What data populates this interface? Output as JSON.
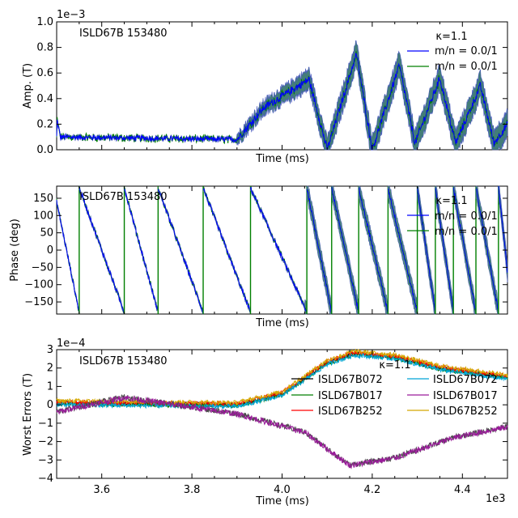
{
  "colors": {
    "blue": "#0000ff",
    "green": "#007f00",
    "band": "#2f6f6a",
    "red": "#ff0000",
    "cyan": "#00a5d6",
    "magenta": "#9a1a9a",
    "gold": "#d4a800"
  },
  "chart_data": [
    {
      "type": "line",
      "title": "ISLD67B 153480",
      "xlabel": "Time (ms)",
      "ylabel": "Amp. (T)",
      "offset_label": "1e−3",
      "xlim": [
        3500,
        4500
      ],
      "ylim": [
        0,
        1.0
      ],
      "yticks": [
        "0.0",
        "0.2",
        "0.4",
        "0.6",
        "0.8",
        "1.0"
      ],
      "legend_title": "κ=1.1",
      "legend_placement": "top-right",
      "series": [
        {
          "name": "m/n = 0.0/1",
          "color": "#0000ff"
        },
        {
          "name": "m/n = 0.0/1",
          "color": "#007f00"
        }
      ],
      "description_of_signal": {
        "baseline_before_3900": 0.08,
        "peaks": [
          [
            3960,
            0.33
          ],
          [
            4060,
            0.55
          ],
          [
            4165,
            0.75
          ],
          [
            4260,
            0.66
          ],
          [
            4350,
            0.56
          ],
          [
            4440,
            0.5
          ]
        ],
        "minima": [
          [
            4100,
            0.0
          ],
          [
            4200,
            0.0
          ],
          [
            4295,
            0.05
          ],
          [
            4385,
            0.05
          ],
          [
            4470,
            0.05
          ]
        ]
      }
    },
    {
      "type": "line",
      "title": "ISLD67B 153480",
      "xlabel": "Time (ms)",
      "ylabel": "Phase (deg)",
      "xlim": [
        3500,
        4500
      ],
      "ylim": [
        -185,
        185
      ],
      "yticks": [
        "150",
        "100",
        "50",
        "0",
        "−50",
        "−100",
        "−150"
      ],
      "legend_title": "κ=1.1",
      "legend_placement": "top-right",
      "series": [
        {
          "name": "m/n = 0.0/1",
          "color": "#0000ff"
        },
        {
          "name": "m/n = 0.0/1",
          "color": "#007f00"
        }
      ],
      "phase_wraps_at_ms": [
        3550,
        3650,
        3725,
        3825,
        3930,
        4055,
        4110,
        4170,
        4235,
        4300,
        4340,
        4380,
        4430,
        4480
      ]
    },
    {
      "type": "line",
      "title": "ISLD67B 153480",
      "xlabel": "Time (ms)",
      "ylabel": "Worst Errors (T)",
      "offset_label": "1e−4",
      "x_offset_label": "1e3",
      "xlim": [
        3500,
        4500
      ],
      "ylim": [
        -4,
        3
      ],
      "yticks": [
        "3",
        "2",
        "1",
        "0",
        "−1",
        "−2",
        "−3",
        "−4"
      ],
      "xticks": [
        "3.6",
        "3.8",
        "4.0",
        "4.2",
        "4.4"
      ],
      "legend_title": "κ=1.1",
      "legend_placement": "top-right",
      "series": [
        {
          "name": "ISLD67B072",
          "color": "#000000"
        },
        {
          "name": "ISLD67B017",
          "color": "#007f00"
        },
        {
          "name": "ISLD67B252",
          "color": "#ff0000"
        },
        {
          "name": "ISLD67B072",
          "color": "#00a5d6"
        },
        {
          "name": "ISLD67B017",
          "color": "#9a1a9a"
        },
        {
          "name": "ISLD67B252",
          "color": "#d4a800"
        }
      ],
      "upper_trend": [
        [
          3500,
          0.1
        ],
        [
          3900,
          0.0
        ],
        [
          4000,
          0.6
        ],
        [
          4100,
          2.3
        ],
        [
          4160,
          2.8
        ],
        [
          4250,
          2.6
        ],
        [
          4350,
          2.0
        ],
        [
          4500,
          1.5
        ]
      ],
      "lower_trend": [
        [
          3500,
          -0.4
        ],
        [
          3650,
          0.4
        ],
        [
          3900,
          -0.5
        ],
        [
          4050,
          -1.5
        ],
        [
          4150,
          -3.3
        ],
        [
          4250,
          -2.9
        ],
        [
          4380,
          -1.8
        ],
        [
          4500,
          -1.2
        ]
      ]
    }
  ]
}
